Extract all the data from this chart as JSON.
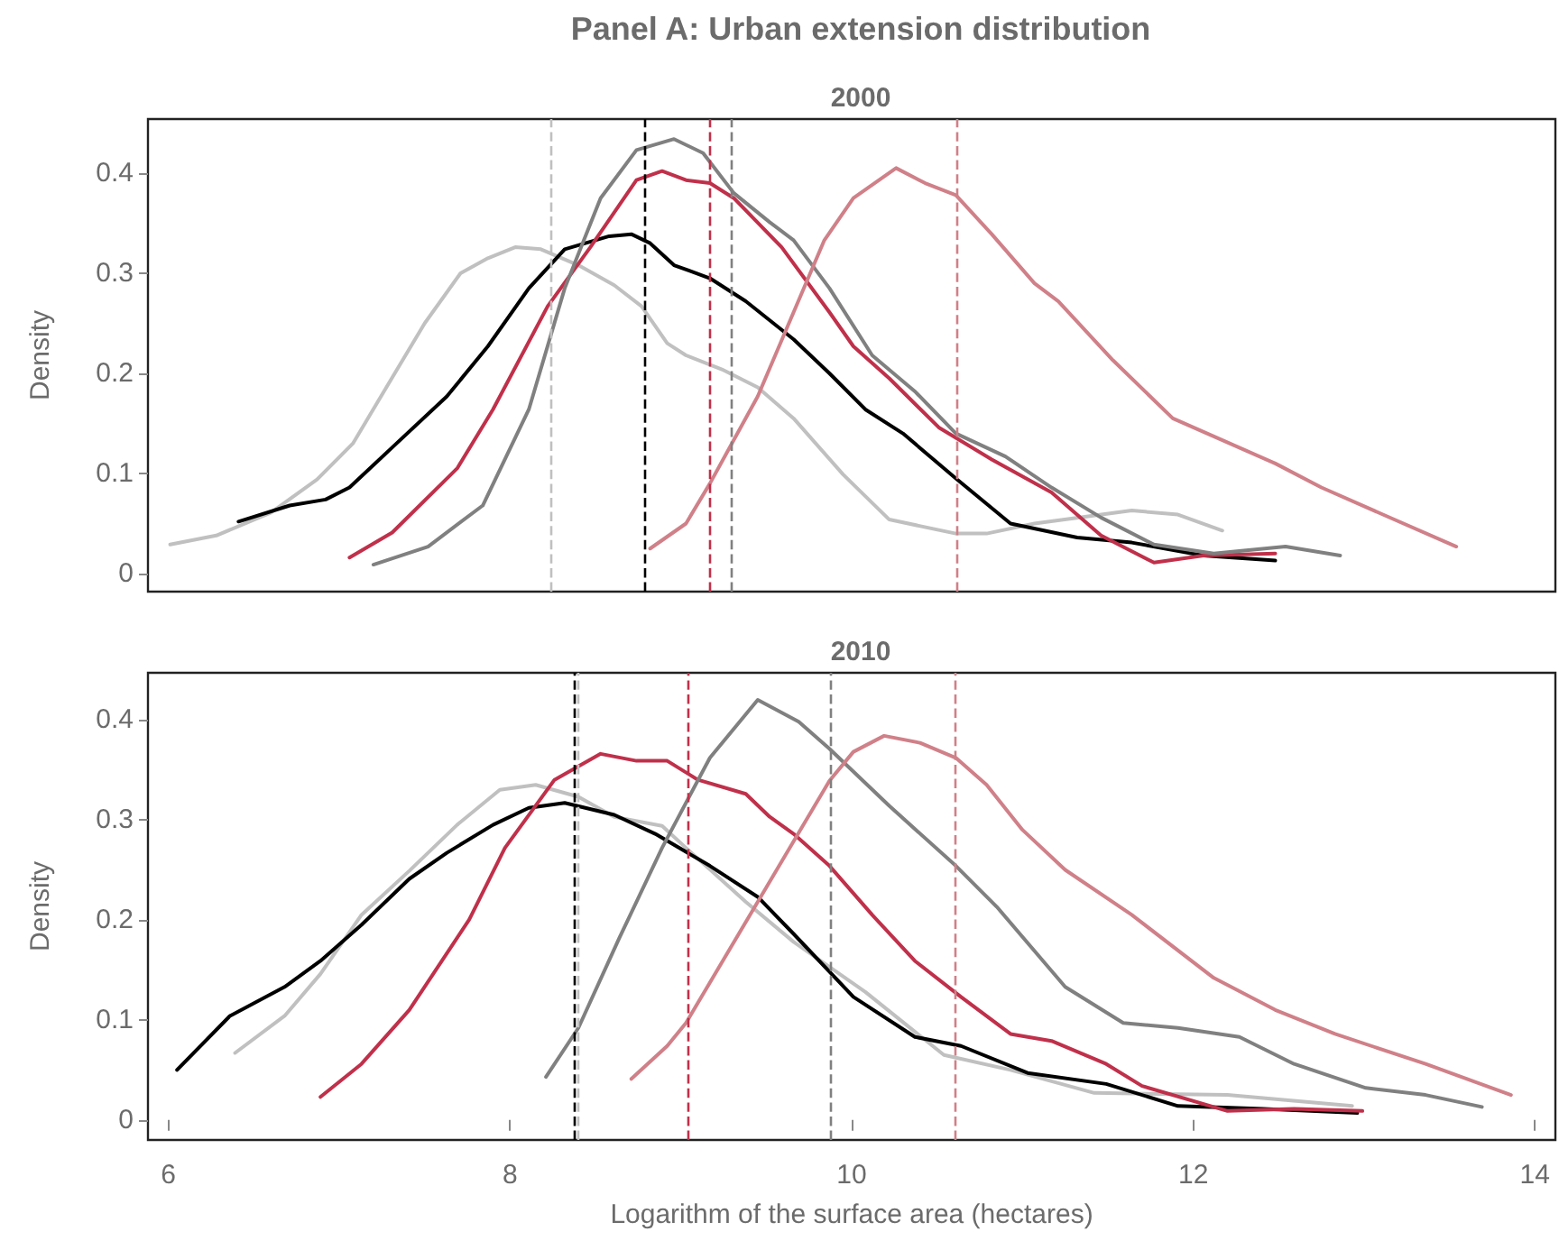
{
  "chart_data": [
    {
      "type": "line",
      "title": "Panel A: Urban extension distribution",
      "subtitle": "2000",
      "ylabel": "Density",
      "xlim": [
        5.88,
        14.12
      ],
      "xticks": [
        6,
        8,
        10,
        12,
        14
      ],
      "ylim": [
        -0.018,
        0.454
      ],
      "yticks": [
        0,
        0.1,
        0.2,
        0.3,
        0.4
      ],
      "tick_labels": "y",
      "grid": false,
      "legend": false,
      "marker": "none",
      "line_style": "solid",
      "series": [
        {
          "color": "#c0c0c0",
          "x": [
            6.01,
            6.28,
            6.6,
            6.87,
            7.08,
            7.29,
            7.5,
            7.71,
            7.87,
            8.03,
            8.18,
            8.4,
            8.61,
            8.77,
            8.92,
            9.03,
            9.24,
            9.45,
            9.66,
            9.95,
            10.22,
            10.61,
            10.79,
            11.07,
            11.64,
            11.91,
            12.17
          ],
          "values": [
            0.029,
            0.038,
            0.061,
            0.094,
            0.13,
            0.19,
            0.25,
            0.3,
            0.315,
            0.326,
            0.324,
            0.308,
            0.288,
            0.267,
            0.23,
            0.218,
            0.204,
            0.186,
            0.155,
            0.099,
            0.054,
            0.04,
            0.04,
            0.05,
            0.063,
            0.059,
            0.043
          ]
        },
        {
          "color": "#000000",
          "x": [
            6.41,
            6.71,
            6.92,
            7.06,
            7.31,
            7.63,
            7.87,
            8.11,
            8.32,
            8.58,
            8.71,
            8.82,
            8.96,
            9.17,
            9.38,
            9.66,
            9.87,
            10.08,
            10.3,
            10.61,
            10.93,
            11.32,
            11.64,
            12.06,
            12.48
          ],
          "values": [
            0.052,
            0.068,
            0.074,
            0.086,
            0.126,
            0.177,
            0.227,
            0.285,
            0.324,
            0.337,
            0.339,
            0.33,
            0.308,
            0.295,
            0.272,
            0.234,
            0.2,
            0.164,
            0.14,
            0.095,
            0.05,
            0.036,
            0.031,
            0.018,
            0.013
          ]
        },
        {
          "color": "#c0304a",
          "x": [
            7.06,
            7.31,
            7.69,
            7.9,
            8.22,
            8.47,
            8.74,
            8.89,
            9.03,
            9.17,
            9.31,
            9.59,
            9.87,
            10.01,
            10.22,
            10.51,
            10.82,
            11.17,
            11.46,
            11.77,
            12.06,
            12.48
          ],
          "values": [
            0.016,
            0.041,
            0.105,
            0.164,
            0.267,
            0.326,
            0.393,
            0.402,
            0.393,
            0.39,
            0.375,
            0.326,
            0.261,
            0.227,
            0.195,
            0.146,
            0.114,
            0.081,
            0.038,
            0.011,
            0.018,
            0.02
          ]
        },
        {
          "color": "#808080",
          "x": [
            7.2,
            7.52,
            7.84,
            8.11,
            8.32,
            8.53,
            8.74,
            8.96,
            9.13,
            9.31,
            9.52,
            9.66,
            9.87,
            10.12,
            10.37,
            10.61,
            10.9,
            11.17,
            11.46,
            11.77,
            12.12,
            12.54,
            12.86
          ],
          "values": [
            0.009,
            0.027,
            0.068,
            0.164,
            0.285,
            0.375,
            0.423,
            0.434,
            0.42,
            0.38,
            0.351,
            0.333,
            0.285,
            0.218,
            0.182,
            0.14,
            0.117,
            0.086,
            0.056,
            0.029,
            0.02,
            0.027,
            0.018
          ]
        },
        {
          "color": "#d08088",
          "x": [
            8.82,
            9.03,
            9.17,
            9.45,
            9.84,
            10.01,
            10.26,
            10.43,
            10.61,
            10.82,
            11.07,
            11.21,
            11.53,
            11.88,
            12.12,
            12.48,
            12.75,
            13.11,
            13.54
          ],
          "values": [
            0.025,
            0.05,
            0.09,
            0.177,
            0.333,
            0.375,
            0.405,
            0.39,
            0.378,
            0.339,
            0.29,
            0.272,
            0.213,
            0.155,
            0.137,
            0.11,
            0.086,
            0.059,
            0.027
          ]
        }
      ],
      "ref_lines": [
        {
          "axis": "x",
          "value": 8.24,
          "color": "#c0c0c0",
          "line_style": "dashed"
        },
        {
          "axis": "x",
          "value": 8.79,
          "color": "#000000",
          "line_style": "dashed"
        },
        {
          "axis": "x",
          "value": 9.17,
          "color": "#c0304a",
          "line_style": "dashed"
        },
        {
          "axis": "x",
          "value": 9.3,
          "color": "#808080",
          "line_style": "dashed"
        },
        {
          "axis": "x",
          "value": 10.62,
          "color": "#d08088",
          "line_style": "dashed"
        }
      ]
    },
    {
      "type": "line",
      "subtitle": "2010",
      "ylabel": "Density",
      "xlabel": "Logarithm of the surface area (hectares)",
      "xlim": [
        5.88,
        14.12
      ],
      "xticks": [
        6,
        8,
        10,
        12,
        14
      ],
      "ylim": [
        -0.02,
        0.447
      ],
      "yticks": [
        0,
        0.1,
        0.2,
        0.3,
        0.4
      ],
      "grid": false,
      "legend": false,
      "marker": "none",
      "line_style": "solid",
      "series": [
        {
          "color": "#c0c0c0",
          "x": [
            6.39,
            6.68,
            6.89,
            7.13,
            7.41,
            7.69,
            7.94,
            8.15,
            8.4,
            8.61,
            8.89,
            9.03,
            9.38,
            9.66,
            10.08,
            10.54,
            10.93,
            11.42,
            12.2,
            12.93
          ],
          "values": [
            0.067,
            0.104,
            0.146,
            0.205,
            0.249,
            0.295,
            0.33,
            0.335,
            0.323,
            0.303,
            0.294,
            0.272,
            0.218,
            0.178,
            0.128,
            0.065,
            0.05,
            0.027,
            0.025,
            0.014
          ]
        },
        {
          "color": "#000000",
          "x": [
            6.05,
            6.36,
            6.68,
            6.89,
            7.13,
            7.41,
            7.63,
            7.9,
            8.11,
            8.32,
            8.61,
            8.85,
            9.17,
            9.45,
            9.66,
            10.01,
            10.37,
            10.64,
            11.03,
            11.49,
            11.91,
            12.41,
            12.96
          ],
          "values": [
            0.05,
            0.104,
            0.133,
            0.159,
            0.195,
            0.241,
            0.267,
            0.295,
            0.312,
            0.317,
            0.305,
            0.286,
            0.254,
            0.223,
            0.186,
            0.123,
            0.083,
            0.074,
            0.047,
            0.036,
            0.014,
            0.011,
            0.007
          ]
        },
        {
          "color": "#c0304a",
          "x": [
            6.89,
            7.13,
            7.41,
            7.76,
            7.97,
            8.26,
            8.53,
            8.74,
            8.92,
            9.1,
            9.38,
            9.52,
            9.66,
            9.87,
            10.12,
            10.37,
            10.64,
            10.93,
            11.17,
            11.49,
            11.7,
            12.2,
            12.59,
            12.99
          ],
          "values": [
            0.023,
            0.056,
            0.11,
            0.2,
            0.272,
            0.34,
            0.366,
            0.359,
            0.359,
            0.34,
            0.326,
            0.303,
            0.286,
            0.254,
            0.205,
            0.159,
            0.123,
            0.086,
            0.079,
            0.056,
            0.034,
            0.009,
            0.011,
            0.009
          ]
        },
        {
          "color": "#808080",
          "x": [
            8.21,
            8.4,
            8.64,
            8.89,
            9.17,
            9.45,
            9.69,
            9.87,
            10.22,
            10.61,
            10.85,
            11.25,
            11.59,
            11.91,
            12.27,
            12.59,
            13.01,
            13.36,
            13.69
          ],
          "values": [
            0.043,
            0.092,
            0.182,
            0.272,
            0.362,
            0.42,
            0.398,
            0.371,
            0.314,
            0.254,
            0.213,
            0.133,
            0.097,
            0.092,
            0.083,
            0.056,
            0.032,
            0.025,
            0.013
          ]
        },
        {
          "color": "#d08088",
          "x": [
            8.71,
            8.92,
            9.03,
            9.45,
            9.87,
            10.01,
            10.19,
            10.4,
            10.61,
            10.79,
            11.0,
            11.25,
            11.64,
            12.12,
            12.48,
            12.83,
            13.36,
            13.86
          ],
          "values": [
            0.041,
            0.074,
            0.097,
            0.218,
            0.339,
            0.368,
            0.384,
            0.377,
            0.362,
            0.335,
            0.29,
            0.25,
            0.205,
            0.142,
            0.11,
            0.086,
            0.056,
            0.025
          ]
        }
      ],
      "ref_lines": [
        {
          "axis": "x",
          "value": 8.38,
          "color": "#000000",
          "line_style": "dashed"
        },
        {
          "axis": "x",
          "value": 8.4,
          "color": "#c0c0c0",
          "line_style": "dashed"
        },
        {
          "axis": "x",
          "value": 9.04,
          "color": "#c0304a",
          "line_style": "dashed"
        },
        {
          "axis": "x",
          "value": 9.88,
          "color": "#808080",
          "line_style": "dashed"
        },
        {
          "axis": "x",
          "value": 10.61,
          "color": "#d08088",
          "line_style": "dashed"
        }
      ]
    }
  ]
}
